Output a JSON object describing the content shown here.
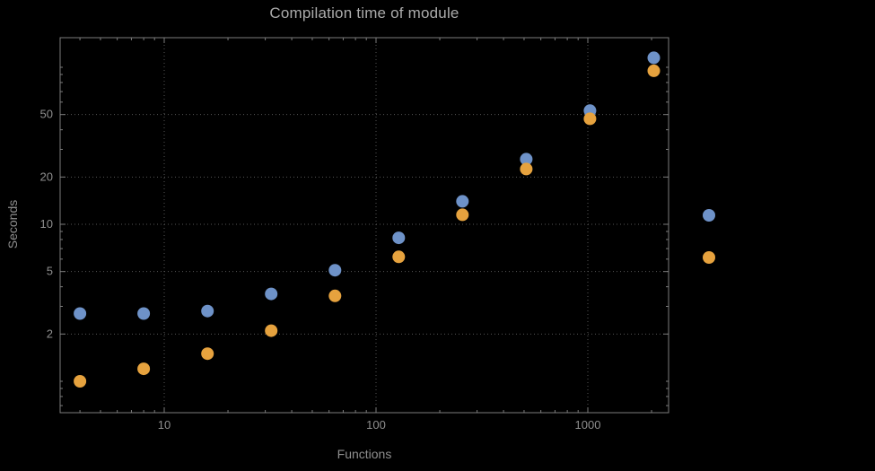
{
  "chart_data": {
    "type": "scatter",
    "title": "Compilation time of module",
    "xlabel": "Functions",
    "ylabel": "Seconds",
    "x_scale": "log",
    "y_scale": "log",
    "grid": true,
    "background": "#000000",
    "x_ticks": [
      10,
      100,
      1000
    ],
    "y_ticks": [
      2,
      5,
      10,
      20,
      50
    ],
    "x_range": [
      3.2,
      2400
    ],
    "y_range": [
      0.63,
      155
    ],
    "categories_x": [
      4,
      8,
      16,
      32,
      64,
      128,
      256,
      512,
      1024,
      2048
    ],
    "series": [
      {
        "name": "blue",
        "color": "#6e92c8",
        "x": [
          4,
          8,
          16,
          32,
          64,
          128,
          256,
          512,
          1024,
          2048
        ],
        "y": [
          2.7,
          2.7,
          2.8,
          3.6,
          5.1,
          8.2,
          14,
          26,
          53,
          115
        ]
      },
      {
        "name": "orange",
        "color": "#e6a23e",
        "x": [
          4,
          8,
          16,
          32,
          64,
          128,
          256,
          512,
          1024,
          2048
        ],
        "y": [
          1.0,
          1.2,
          1.5,
          2.1,
          3.5,
          6.2,
          11.5,
          22.5,
          47,
          95
        ]
      }
    ],
    "legend": {
      "position": "right-outside",
      "markers": [
        {
          "series": "blue",
          "color": "#6e92c8",
          "label": ""
        },
        {
          "series": "orange",
          "color": "#e6a23e",
          "label": ""
        }
      ]
    }
  }
}
